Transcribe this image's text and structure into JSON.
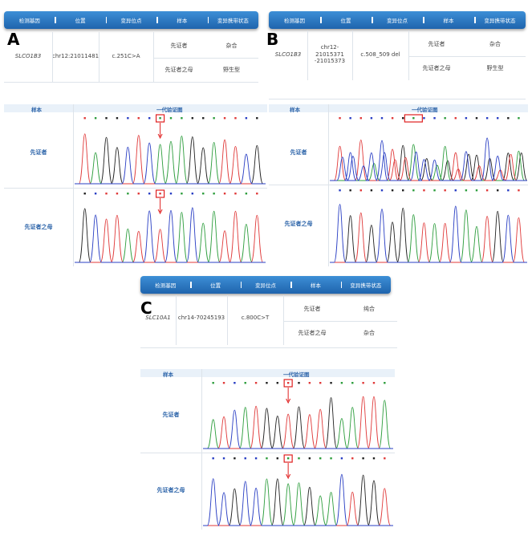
{
  "headers": [
    "检测基因",
    "位置",
    "变异位点",
    "样本",
    "变异携带状态"
  ],
  "panels": [
    {
      "letter": "A",
      "gene": "SLCO1B3",
      "position": "chr12:21011481",
      "variant": "c.251C>A",
      "samples": [
        {
          "name": "先证者",
          "status": "杂合"
        },
        {
          "name": "先证者之母",
          "status": "野生型"
        }
      ],
      "seq_header_sample": "样本",
      "seq_header_chrom": "一代验证图",
      "rows": [
        "先证者",
        "先证者之母"
      ]
    },
    {
      "letter": "B",
      "gene": "SLCO1B3",
      "position": "chr12-21015371-21015373",
      "position_line1": "chr12-21015371",
      "position_line2": "-21015373",
      "variant": "c.508_509 del",
      "samples": [
        {
          "name": "先证者",
          "status": "杂合"
        },
        {
          "name": "先证者之母",
          "status": "野生型"
        }
      ],
      "seq_header_sample": "样本",
      "seq_header_chrom": "一代验证图",
      "rows": [
        "先证者",
        "先证者之母"
      ]
    },
    {
      "letter": "C",
      "gene": "SLC10A1",
      "position": "chr14-70245193",
      "variant": "c.800C>T",
      "samples": [
        {
          "name": "先证者",
          "status": "纯合"
        },
        {
          "name": "先证者之母",
          "status": "杂合"
        }
      ],
      "seq_header_sample": "样本",
      "seq_header_chrom": "一代验证图",
      "rows": [
        "先证者",
        "先证者之母"
      ]
    }
  ],
  "trace_colors": {
    "A": "#2e9e3e",
    "C": "#2a3fc4",
    "G": "#222222",
    "T": "#e03a3a",
    "highlight": "#e02020"
  }
}
